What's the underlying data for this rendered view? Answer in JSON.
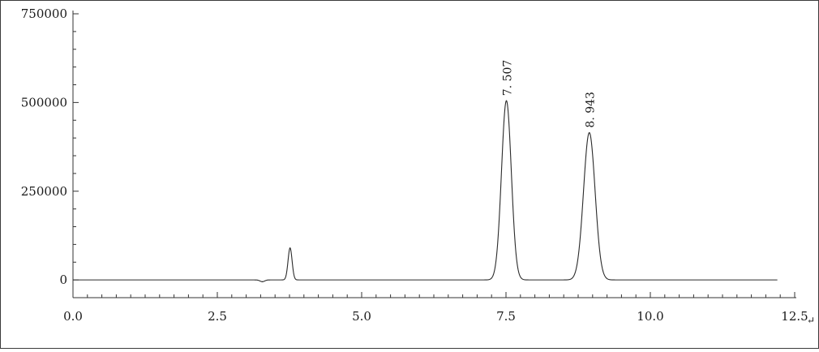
{
  "chart_data": {
    "type": "line",
    "title": "",
    "xlabel": "",
    "ylabel": "",
    "xlim": [
      0.0,
      12.5
    ],
    "ylim": [
      -50000,
      750000
    ],
    "x_ticks": [
      0.0,
      2.5,
      5.0,
      7.5,
      10.0,
      12.5
    ],
    "x_tick_labels": [
      "0.0",
      "2.5",
      "5.0",
      "7.5",
      "10.0",
      "12.5"
    ],
    "y_ticks": [
      0,
      250000,
      500000,
      750000
    ],
    "y_tick_labels": [
      "0",
      "250000",
      "500000",
      "750000"
    ],
    "grid": false,
    "legend": "none",
    "series": [
      {
        "values_description_free": true,
        "peaks": [
          {
            "rt": 3.28,
            "height": -5000,
            "width": 0.04
          },
          {
            "rt": 3.76,
            "height": 90000,
            "width": 0.035
          },
          {
            "rt": 7.507,
            "height": 505000,
            "width": 0.085
          },
          {
            "rt": 8.943,
            "height": 415000,
            "width": 0.1
          }
        ],
        "x_range": [
          0.0,
          12.2
        ],
        "color": "#2a2a2a"
      }
    ],
    "annotations": [
      {
        "text": "7. 507",
        "x": 7.507,
        "y": 505000
      },
      {
        "text": "8. 943",
        "x": 8.943,
        "y": 415000
      }
    ],
    "trailing_mark": "↵"
  }
}
